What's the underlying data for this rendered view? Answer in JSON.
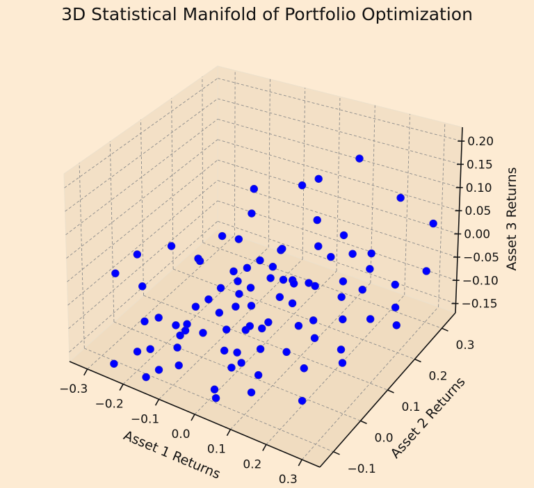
{
  "chart_data": {
    "type": "scatter",
    "title": "3D Statistical Manifold of Portfolio Optimization",
    "xlabel": "Asset 1 Returns",
    "ylabel": "Asset 2 Returns",
    "zlabel": "Asset 3 Returns",
    "xlim": [
      -0.35,
      0.35
    ],
    "ylim": [
      -0.15,
      0.35
    ],
    "zlim": [
      -0.17,
      0.23
    ],
    "xticks": [
      "−0.3",
      "−0.2",
      "−0.1",
      "0.0",
      "0.1",
      "0.2",
      "0.3"
    ],
    "yticks": [
      "−0.1",
      "0.0",
      "0.1",
      "0.2",
      "0.3"
    ],
    "zticks": [
      "−0.15",
      "−0.10",
      "−0.05",
      "0.00",
      "0.05",
      "0.10",
      "0.15",
      "0.20"
    ],
    "grid": true,
    "marker_color": "#0000ff",
    "background_color": "#fdebd3",
    "pane_color": "#f3e0c6",
    "points": [
      [
        -0.05,
        0.12,
        0.14
      ],
      [
        0.02,
        0.2,
        0.12
      ],
      [
        0.05,
        0.22,
        0.13
      ],
      [
        0.1,
        0.3,
        0.14
      ],
      [
        -0.04,
        0.1,
        0.1
      ],
      [
        0.08,
        0.18,
        0.07
      ],
      [
        0.22,
        0.3,
        0.08
      ],
      [
        -0.12,
        0.02,
        0.02
      ],
      [
        -0.2,
        0.02,
        0.03
      ],
      [
        0.1,
        0.16,
        0.03
      ],
      [
        0.14,
        0.2,
        0.04
      ],
      [
        0.3,
        0.32,
        0.03
      ],
      [
        -0.15,
        0.05,
        0.0
      ],
      [
        -0.3,
        -0.05,
        -0.02
      ],
      [
        -0.28,
        0.0,
        0.0
      ],
      [
        -0.25,
        -0.02,
        -0.05
      ],
      [
        -0.05,
        0.05,
        0.0
      ],
      [
        -0.02,
        0.06,
        0.01
      ],
      [
        0.0,
        0.08,
        0.02
      ],
      [
        -0.03,
        0.04,
        -0.01
      ],
      [
        0.02,
        0.1,
        0.0
      ],
      [
        -0.01,
        0.02,
        -0.02
      ],
      [
        0.03,
        0.08,
        -0.01
      ],
      [
        0.05,
        0.1,
        -0.02
      ],
      [
        0.06,
        0.12,
        -0.03
      ],
      [
        0.08,
        0.1,
        -0.02
      ],
      [
        0.12,
        0.18,
        0.0
      ],
      [
        0.15,
        0.22,
        -0.01
      ],
      [
        0.18,
        0.25,
        -0.02
      ],
      [
        0.2,
        0.22,
        -0.03
      ],
      [
        -0.1,
        -0.02,
        -0.05
      ],
      [
        -0.08,
        0.0,
        -0.04
      ],
      [
        -0.18,
        -0.05,
        -0.08
      ],
      [
        -0.1,
        -0.05,
        -0.07
      ],
      [
        -0.05,
        0.0,
        -0.06
      ],
      [
        -0.02,
        0.02,
        -0.05
      ],
      [
        0.0,
        0.05,
        -0.06
      ],
      [
        0.04,
        0.1,
        -0.06
      ],
      [
        0.06,
        0.12,
        -0.08
      ],
      [
        0.1,
        0.15,
        -0.05
      ],
      [
        0.14,
        0.2,
        -0.06
      ],
      [
        0.18,
        0.22,
        -0.08
      ],
      [
        0.25,
        0.25,
        -0.07
      ],
      [
        0.3,
        0.3,
        -0.06
      ],
      [
        -0.22,
        -0.05,
        -0.1
      ],
      [
        -0.14,
        -0.04,
        -0.09
      ],
      [
        -0.12,
        -0.05,
        -0.1
      ],
      [
        -0.08,
        -0.02,
        -0.1
      ],
      [
        -0.03,
        0.0,
        -0.09
      ],
      [
        0.0,
        0.03,
        -0.1
      ],
      [
        0.02,
        0.02,
        -0.08
      ],
      [
        0.03,
        0.05,
        -0.1
      ],
      [
        0.04,
        0.06,
        -0.09
      ],
      [
        0.12,
        0.12,
        -0.1
      ],
      [
        0.18,
        0.15,
        -0.1
      ],
      [
        0.22,
        0.2,
        -0.12
      ],
      [
        0.26,
        0.24,
        -0.11
      ],
      [
        0.28,
        0.22,
        -0.13
      ],
      [
        -0.2,
        -0.1,
        -0.13
      ],
      [
        -0.18,
        -0.08,
        -0.13
      ],
      [
        -0.12,
        -0.06,
        -0.12
      ],
      [
        -0.02,
        -0.02,
        -0.12
      ],
      [
        0.0,
        0.0,
        -0.13
      ],
      [
        0.05,
        0.02,
        -0.12
      ],
      [
        0.1,
        0.05,
        -0.13
      ],
      [
        0.14,
        0.1,
        -0.12
      ],
      [
        0.2,
        0.12,
        -0.14
      ],
      [
        -0.14,
        -0.1,
        -0.15
      ],
      [
        -0.1,
        -0.08,
        -0.14
      ],
      [
        0.0,
        -0.02,
        -0.15
      ],
      [
        0.02,
        -0.01,
        -0.14
      ],
      [
        0.06,
        0.0,
        -0.16
      ],
      [
        0.15,
        0.05,
        -0.15
      ],
      [
        0.22,
        0.1,
        -0.15
      ],
      [
        -0.25,
        -0.12,
        -0.16
      ],
      [
        -0.16,
        -0.12,
        -0.16
      ],
      [
        0.0,
        -0.08,
        -0.16
      ],
      [
        0.02,
        -0.1,
        -0.16
      ],
      [
        0.08,
        -0.05,
        -0.16
      ],
      [
        0.2,
        -0.02,
        -0.16
      ],
      [
        -0.06,
        0.08,
        0.05
      ],
      [
        -0.09,
        0.06,
        0.06
      ],
      [
        0.01,
        0.14,
        0.01
      ],
      [
        -0.07,
        0.03,
        -0.03
      ],
      [
        0.09,
        0.14,
        -0.04
      ],
      [
        -0.01,
        0.06,
        -0.03
      ],
      [
        0.03,
        0.12,
        0.03
      ],
      [
        -0.13,
        -0.02,
        -0.11
      ],
      [
        0.11,
        0.08,
        -0.09
      ],
      [
        0.16,
        0.17,
        -0.07
      ]
    ]
  }
}
